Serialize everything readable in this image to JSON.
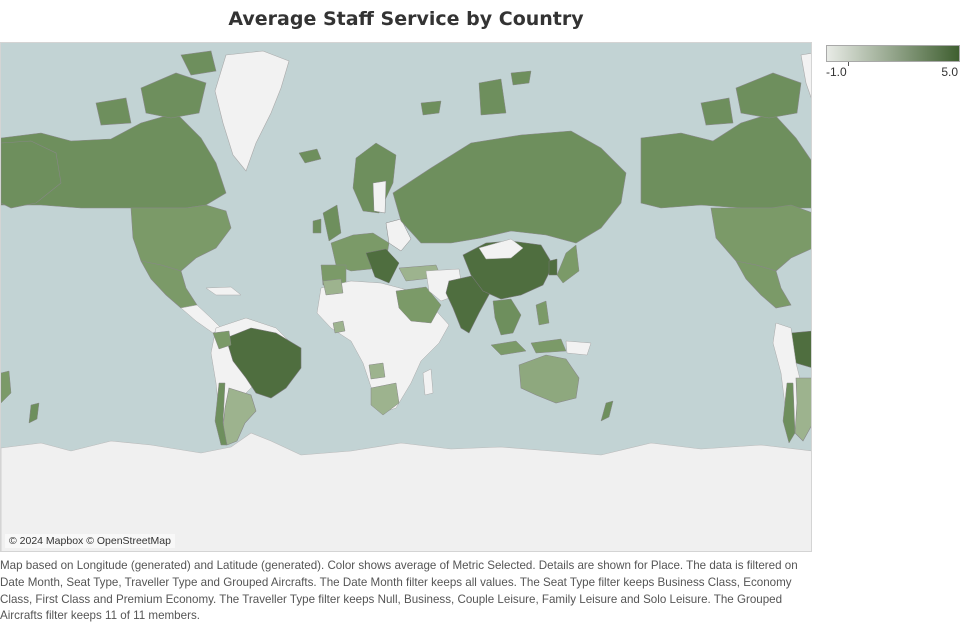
{
  "title": "Average Staff Service by Country",
  "map": {
    "attribution": "© 2024 Mapbox © OpenStreetMap",
    "ocean_color": "#c2d3d4",
    "land_no_data_color": "#f2f2f2",
    "ice_color": "#f0f0f0"
  },
  "legend": {
    "min_label": "-1.0",
    "max_label": "5.0",
    "min": -1.0,
    "max": 5.0,
    "color_low": "#e8ebe6",
    "color_high": "#3f5f30"
  },
  "caption": "Map based on Longitude (generated) and Latitude (generated).  Color shows average of Metric Selected.  Details are shown for Place. The data is filtered on Date Month, Seat Type, Traveller Type and Grouped Aircrafts. The Date Month filter keeps all values. The Seat Type filter keeps Business Class, Economy Class, First Class and Premium Economy. The Traveller Type filter keeps Null, Business, Couple Leisure, Family Leisure and Solo Leisure. The Grouped Aircrafts filter keeps 11 of 11 members."
}
